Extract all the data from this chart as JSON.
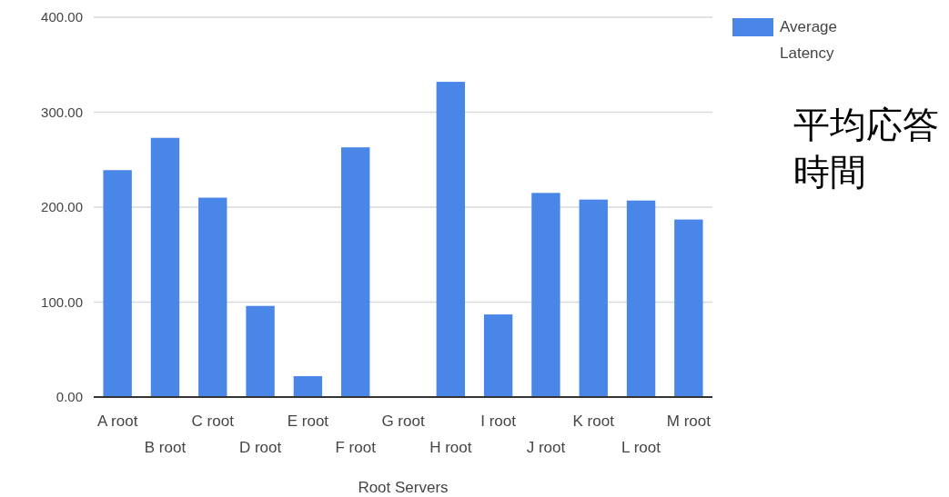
{
  "chart_data": {
    "type": "bar",
    "xlabel": "Root Servers",
    "categories": [
      "A root",
      "B root",
      "C root",
      "D root",
      "E root",
      "F root",
      "G root",
      "H root",
      "I root",
      "J root",
      "K root",
      "L root",
      "M root"
    ],
    "series": [
      {
        "name": "Average Latency",
        "color": "#4a86e8",
        "values": [
          239,
          273,
          210,
          96,
          22,
          263,
          0,
          332,
          87,
          215,
          208,
          207,
          187
        ]
      }
    ],
    "ylim": [
      0,
      400
    ],
    "yticks": [
      {
        "value": 0,
        "label": "0.00"
      },
      {
        "value": 100,
        "label": "100.00"
      },
      {
        "value": 200,
        "label": "200.00"
      },
      {
        "value": 300,
        "label": "300.00"
      },
      {
        "value": 400,
        "label": "400.00"
      }
    ],
    "grid": "y",
    "legend": "top right",
    "annotations": [
      "平均応答時間"
    ]
  }
}
